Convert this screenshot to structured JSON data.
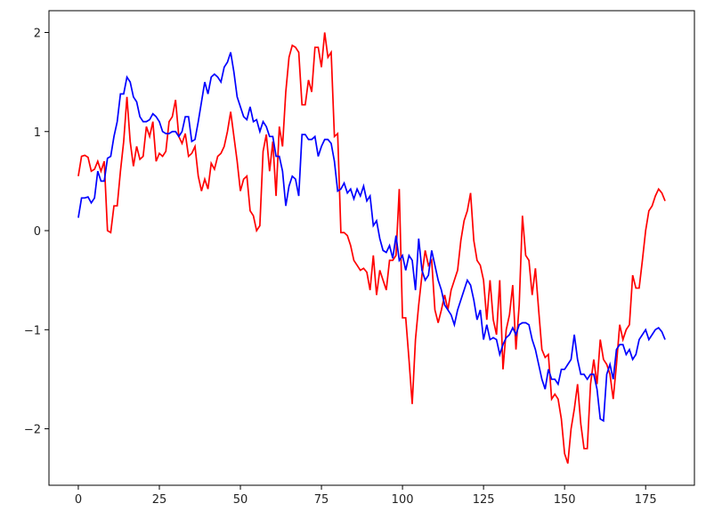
{
  "chart_data": {
    "type": "line",
    "x": [
      0,
      1,
      2,
      3,
      4,
      5,
      6,
      7,
      8,
      9,
      10,
      11,
      12,
      13,
      14,
      15,
      16,
      17,
      18,
      19,
      20,
      21,
      22,
      23,
      24,
      25,
      26,
      27,
      28,
      29,
      30,
      31,
      32,
      33,
      34,
      35,
      36,
      37,
      38,
      39,
      40,
      41,
      42,
      43,
      44,
      45,
      46,
      47,
      48,
      49,
      50,
      51,
      52,
      53,
      54,
      55,
      56,
      57,
      58,
      59,
      60,
      61,
      62,
      63,
      64,
      65,
      66,
      67,
      68,
      69,
      70,
      71,
      72,
      73,
      74,
      75,
      76,
      77,
      78,
      79,
      80,
      81,
      82,
      83,
      84,
      85,
      86,
      87,
      88,
      89,
      90,
      91,
      92,
      93,
      94,
      95,
      96,
      97,
      98,
      99,
      100,
      101,
      102,
      103,
      104,
      105,
      106,
      107,
      108,
      109,
      110,
      111,
      112,
      113,
      114,
      115,
      116,
      117,
      118,
      119,
      120,
      121,
      122,
      123,
      124,
      125,
      126,
      127,
      128,
      129,
      130,
      131,
      132,
      133,
      134,
      135,
      136,
      137,
      138,
      139,
      140,
      141,
      142,
      143,
      144,
      145,
      146,
      147,
      148,
      149,
      150,
      151,
      152,
      153,
      154,
      155,
      156,
      157,
      158,
      159,
      160,
      161,
      162,
      163,
      164,
      165,
      166,
      167,
      168,
      169,
      170,
      171,
      172,
      173,
      174,
      175,
      176,
      177,
      178,
      179,
      180,
      181
    ],
    "series": [
      {
        "color": "#ff0000",
        "values": [
          0.55,
          0.75,
          0.76,
          0.74,
          0.6,
          0.62,
          0.7,
          0.6,
          0.7,
          0.0,
          -0.02,
          0.25,
          0.25,
          0.6,
          0.9,
          1.35,
          0.9,
          0.65,
          0.85,
          0.72,
          0.75,
          1.05,
          0.95,
          1.1,
          0.7,
          0.78,
          0.75,
          0.8,
          1.1,
          1.15,
          1.32,
          0.95,
          0.88,
          0.98,
          0.75,
          0.78,
          0.85,
          0.55,
          0.4,
          0.52,
          0.42,
          0.68,
          0.62,
          0.75,
          0.78,
          0.85,
          1.0,
          1.2,
          0.95,
          0.7,
          0.4,
          0.52,
          0.55,
          0.2,
          0.15,
          0.0,
          0.05,
          0.8,
          0.97,
          0.6,
          0.9,
          0.35,
          1.05,
          0.85,
          1.4,
          1.75,
          1.87,
          1.85,
          1.8,
          1.27,
          1.27,
          1.52,
          1.4,
          1.85,
          1.85,
          1.65,
          2.0,
          1.75,
          1.8,
          0.95,
          0.98,
          -0.02,
          -0.02,
          -0.05,
          -0.15,
          -0.3,
          -0.35,
          -0.4,
          -0.38,
          -0.42,
          -0.6,
          -0.25,
          -0.65,
          -0.4,
          -0.5,
          -0.6,
          -0.3,
          -0.3,
          -0.25,
          0.42,
          -0.88,
          -0.88,
          -1.3,
          -1.75,
          -1.1,
          -0.75,
          -0.45,
          -0.2,
          -0.35,
          -0.3,
          -0.8,
          -0.93,
          -0.8,
          -0.65,
          -0.8,
          -0.6,
          -0.5,
          -0.4,
          -0.1,
          0.1,
          0.2,
          0.38,
          -0.1,
          -0.3,
          -0.35,
          -0.5,
          -0.9,
          -0.5,
          -0.9,
          -1.05,
          -0.5,
          -1.4,
          -1.0,
          -0.85,
          -0.55,
          -1.2,
          -0.75,
          0.15,
          -0.25,
          -0.3,
          -0.65,
          -0.38,
          -0.8,
          -1.2,
          -1.28,
          -1.25,
          -1.7,
          -1.65,
          -1.7,
          -1.9,
          -2.25,
          -2.35,
          -2.0,
          -1.8,
          -1.55,
          -1.95,
          -2.2,
          -2.2,
          -1.55,
          -1.3,
          -1.55,
          -1.1,
          -1.3,
          -1.35,
          -1.45,
          -1.7,
          -1.35,
          -0.95,
          -1.1,
          -1.0,
          -0.95,
          -0.45,
          -0.58,
          -0.58,
          -0.3,
          0.0,
          0.2,
          0.25,
          0.35,
          0.42,
          0.38,
          0.3
        ]
      },
      {
        "color": "#0000ff",
        "values": [
          0.13,
          0.33,
          0.33,
          0.34,
          0.28,
          0.33,
          0.6,
          0.5,
          0.5,
          0.73,
          0.75,
          0.95,
          1.1,
          1.38,
          1.38,
          1.55,
          1.5,
          1.35,
          1.3,
          1.15,
          1.1,
          1.1,
          1.12,
          1.18,
          1.15,
          1.1,
          1.0,
          0.98,
          0.98,
          1.0,
          1.0,
          0.95,
          1.0,
          1.15,
          1.15,
          0.9,
          0.92,
          1.1,
          1.3,
          1.5,
          1.38,
          1.55,
          1.58,
          1.55,
          1.5,
          1.65,
          1.7,
          1.8,
          1.6,
          1.35,
          1.25,
          1.15,
          1.12,
          1.25,
          1.1,
          1.12,
          1.0,
          1.1,
          1.05,
          0.95,
          0.95,
          0.75,
          0.75,
          0.6,
          0.25,
          0.45,
          0.55,
          0.52,
          0.35,
          0.97,
          0.97,
          0.92,
          0.92,
          0.95,
          0.75,
          0.85,
          0.92,
          0.92,
          0.88,
          0.7,
          0.4,
          0.42,
          0.48,
          0.38,
          0.42,
          0.32,
          0.42,
          0.35,
          0.45,
          0.3,
          0.35,
          0.05,
          0.1,
          -0.08,
          -0.2,
          -0.22,
          -0.15,
          -0.28,
          -0.05,
          -0.3,
          -0.25,
          -0.4,
          -0.25,
          -0.3,
          -0.6,
          -0.08,
          -0.4,
          -0.5,
          -0.45,
          -0.2,
          -0.35,
          -0.5,
          -0.6,
          -0.75,
          -0.8,
          -0.85,
          -0.95,
          -0.8,
          -0.7,
          -0.6,
          -0.5,
          -0.55,
          -0.7,
          -0.9,
          -0.8,
          -1.1,
          -0.95,
          -1.1,
          -1.08,
          -1.1,
          -1.25,
          -1.15,
          -1.08,
          -1.05,
          -0.98,
          -1.05,
          -0.95,
          -0.93,
          -0.93,
          -0.95,
          -1.1,
          -1.2,
          -1.35,
          -1.5,
          -1.6,
          -1.4,
          -1.5,
          -1.5,
          -1.55,
          -1.4,
          -1.4,
          -1.35,
          -1.3,
          -1.05,
          -1.3,
          -1.45,
          -1.45,
          -1.5,
          -1.45,
          -1.45,
          -1.6,
          -1.9,
          -1.92,
          -1.45,
          -1.35,
          -1.5,
          -1.2,
          -1.15,
          -1.15,
          -1.25,
          -1.2,
          -1.3,
          -1.25,
          -1.1,
          -1.05,
          -1.0,
          -1.1,
          -1.05,
          -1.0,
          -0.98,
          -1.02,
          -1.1
        ]
      }
    ],
    "xlim": [
      -9.05,
      190.05
    ],
    "ylim": [
      -2.57,
      2.22
    ],
    "xticks": [
      0,
      25,
      50,
      75,
      100,
      125,
      150,
      175
    ],
    "yticks": [
      {
        "value": -2,
        "label": "−2"
      },
      {
        "value": -1,
        "label": "−1"
      },
      0,
      1,
      2
    ]
  }
}
